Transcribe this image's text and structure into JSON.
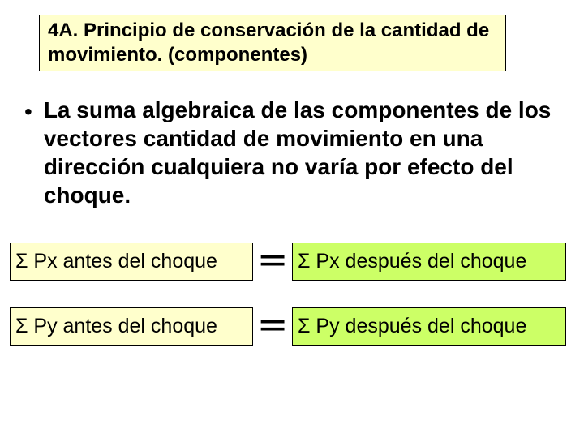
{
  "colors": {
    "title_bg": "#ffffcc",
    "box_left_bg": "#ffffcc",
    "box_right_bg": "#ccff66",
    "border": "#000000",
    "text": "#000000",
    "page_bg": "#ffffff"
  },
  "typography": {
    "title_fontsize": 24,
    "title_weight": "bold",
    "bullet_fontsize": 28,
    "bullet_weight": "bold",
    "box_fontsize": 25,
    "equals_fontsize": 48
  },
  "title": {
    "text": "4A. Principio de conservación de  la cantidad de movimiento. (componentes)"
  },
  "bullet": {
    "marker": "•",
    "text": "La suma algebraica de las componentes de los vectores  cantidad de movimiento en una dirección cualquiera no varía por efecto del choque."
  },
  "equations": {
    "equals": "=",
    "rows": [
      {
        "left": "Σ Px antes del choque",
        "right": "Σ Px después del choque"
      },
      {
        "left": "Σ Py antes del choque",
        "right": "Σ Py después del choque"
      }
    ]
  }
}
